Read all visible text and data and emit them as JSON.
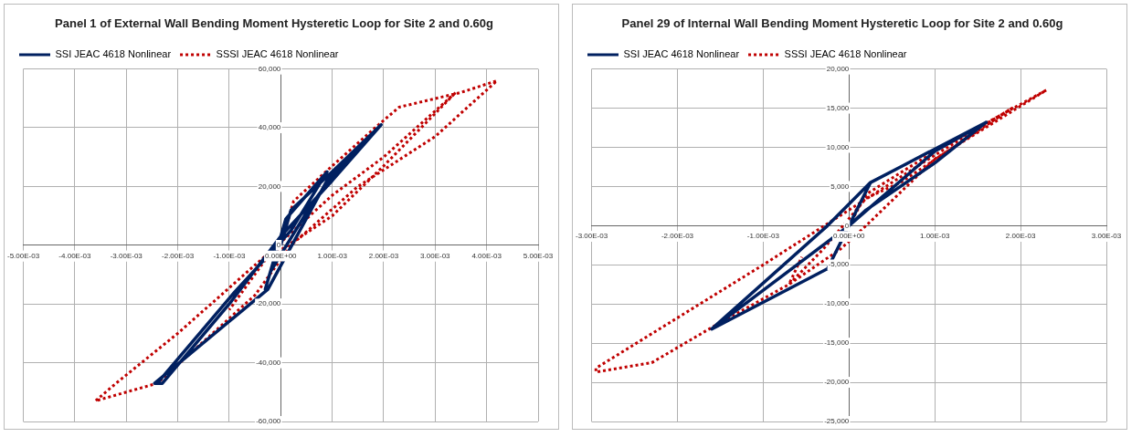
{
  "chart_data": [
    {
      "type": "line",
      "title": "Panel 1 of External Wall Bending Moment Hysteretic Loop for Site 2 and 0.60g",
      "legend": "top left",
      "grid": true,
      "marker": "none",
      "xlim": [
        -0.005,
        0.005
      ],
      "ylim": [
        -60000,
        60000
      ],
      "xticks": [
        {
          "value": -0.005,
          "label": "-5.00E-03"
        },
        {
          "value": -0.004,
          "label": "-4.00E-03"
        },
        {
          "value": -0.003,
          "label": "-3.00E-03"
        },
        {
          "value": -0.002,
          "label": "-2.00E-03"
        },
        {
          "value": -0.001,
          "label": "-1.00E-03"
        },
        {
          "value": 0,
          "label": "0.00E+00"
        },
        {
          "value": 0.001,
          "label": "1.00E-03"
        },
        {
          "value": 0.002,
          "label": "2.00E-03"
        },
        {
          "value": 0.003,
          "label": "3.00E-03"
        },
        {
          "value": 0.004,
          "label": "4.00E-03"
        },
        {
          "value": 0.005,
          "label": "5.00E-03"
        }
      ],
      "yticks": [
        {
          "value": -60000,
          "label": "-60,000"
        },
        {
          "value": -40000,
          "label": "-40,000"
        },
        {
          "value": -20000,
          "label": "-20,000"
        },
        {
          "value": 0,
          "label": "0"
        },
        {
          "value": 20000,
          "label": "20,000"
        },
        {
          "value": 40000,
          "label": "40,000"
        },
        {
          "value": 60000,
          "label": "60,000"
        }
      ],
      "series": [
        {
          "name": "SSI JEAC 4618 Nonlinear",
          "color": "#002060",
          "line_style": "solid",
          "x": [
            0,
            0.0002,
            0.001,
            0.00195,
            0.0009,
            -0.00025,
            -0.00245,
            -0.0023,
            -0.001,
            0,
            0.001,
            0.00195,
            0.0012,
            0.0006,
            -0.0002,
            -0.0003,
            0.0001,
            0.0004,
            0.0009,
            0.0002,
            -0.0009,
            -0.0024
          ],
          "values": [
            0,
            12000,
            25000,
            41000,
            22000,
            -15000,
            -47000,
            -47000,
            -20000,
            3000,
            22000,
            41000,
            28000,
            14000,
            -9000,
            -15000,
            9000,
            15000,
            25000,
            5000,
            -16000,
            -47000
          ]
        },
        {
          "name": "SSSI JEAC 4618 Nonlinear",
          "color": "#c00000",
          "line_style": "dotted",
          "x": [
            0,
            0.00025,
            0.001,
            0.0019,
            0.0023,
            0.0035,
            0.0042,
            0.003,
            0.0015,
            0.0002,
            -0.0005,
            -0.0024,
            -0.0036,
            -0.0032,
            -0.002,
            0,
            0.001,
            0.002,
            0.0034,
            0.002,
            0.001,
            0.0004,
            -0.0003,
            -0.001
          ],
          "values": [
            0,
            15000,
            27000,
            41000,
            47000,
            52000,
            56000,
            37000,
            20000,
            0,
            -17000,
            -47000,
            -53000,
            -47000,
            -30000,
            1000,
            17000,
            30000,
            52000,
            27000,
            10000,
            3000,
            -5000,
            -22000
          ]
        }
      ]
    },
    {
      "type": "line",
      "title": "Panel 29 of Internal Wall Bending Moment Hysteretic Loop for Site 2 and 0.60g",
      "legend": "top left",
      "grid": true,
      "marker": "none",
      "xlim": [
        -0.003,
        0.003
      ],
      "ylim": [
        -25000,
        20000
      ],
      "xticks": [
        {
          "value": -0.003,
          "label": "-3.00E-03"
        },
        {
          "value": -0.002,
          "label": "-2.00E-03"
        },
        {
          "value": -0.001,
          "label": "-1.00E-03"
        },
        {
          "value": 0,
          "label": "0.00E+00"
        },
        {
          "value": 0.001,
          "label": "1.00E-03"
        },
        {
          "value": 0.002,
          "label": "2.00E-03"
        },
        {
          "value": 0.003,
          "label": "3.00E-03"
        }
      ],
      "yticks": [
        {
          "value": -25000,
          "label": "-25,000"
        },
        {
          "value": -20000,
          "label": "-20,000"
        },
        {
          "value": -15000,
          "label": "-15,000"
        },
        {
          "value": -10000,
          "label": "-10,000"
        },
        {
          "value": -5000,
          "label": "-5,000"
        },
        {
          "value": 0,
          "label": "0"
        },
        {
          "value": 5000,
          "label": "5,000"
        },
        {
          "value": 10000,
          "label": "10,000"
        },
        {
          "value": 15000,
          "label": "15,000"
        },
        {
          "value": 20000,
          "label": "20,000"
        }
      ],
      "series": [
        {
          "name": "SSI JEAC 4618 Nonlinear",
          "color": "#002060",
          "line_style": "solid",
          "x": [
            0,
            0.00025,
            0.0006,
            0.0016,
            0.001,
            0.0002,
            0,
            -0.0016,
            -0.00025,
            0.00025,
            0.0006,
            0.0016,
            0.001,
            0,
            -0.0016,
            -0.00025,
            0,
            0.00025
          ],
          "values": [
            0,
            5500,
            7500,
            13200,
            8000,
            2000,
            0,
            -13200,
            0,
            5500,
            7500,
            13200,
            9500,
            0,
            -13200,
            -5500,
            0,
            5500
          ]
        },
        {
          "name": "SSSI JEAC 4618 Nonlinear",
          "color": "#c00000",
          "line_style": "dotted",
          "x": [
            0,
            0.0002,
            0.001,
            0.0023,
            0.001,
            0.0002,
            -0.0001,
            -0.0007,
            -0.0016,
            -0.0023,
            -0.00295,
            -0.00295,
            -0.001,
            0,
            0.001,
            0.0019,
            0.0006,
            0.0002,
            -0.0003,
            -0.0007,
            -0.00055
          ],
          "values": [
            0,
            4000,
            9500,
            17300,
            8500,
            0,
            -3000,
            -7500,
            -13000,
            -17500,
            -18700,
            -18200,
            -5000,
            2000,
            9000,
            15000,
            5500,
            3500,
            -3000,
            -7500,
            -4000
          ]
        }
      ]
    }
  ]
}
